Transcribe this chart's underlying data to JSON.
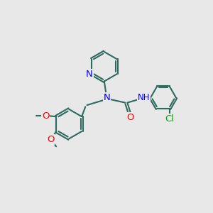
{
  "bg_color": "#e8e8e8",
  "bond_color": "#2d6b5e",
  "n_color": "#0000ff",
  "o_color": "#ff0000",
  "cl_color": "#00aa00",
  "lw": 1.5,
  "fs": 8.5,
  "xlim": [
    0,
    10
  ],
  "ylim": [
    0,
    10
  ]
}
